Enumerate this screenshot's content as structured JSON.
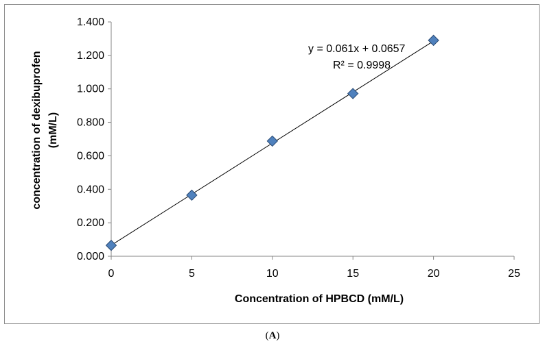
{
  "chart_data": {
    "type": "scatter",
    "x": [
      0,
      5,
      10,
      15,
      20
    ],
    "y": [
      0.065,
      0.365,
      0.688,
      0.972,
      1.29
    ],
    "xlabel": "Concentration of HPBCD (mM/L)",
    "ylabel_line1": "concentration of dexibuprofen",
    "ylabel_line2": "(mM/L)",
    "xlim": [
      0,
      25
    ],
    "ylim": [
      0,
      1.4
    ],
    "x_ticks": [
      "0",
      "5",
      "10",
      "15",
      "20",
      "25"
    ],
    "y_ticks": [
      "0.000",
      "0.200",
      "0.400",
      "0.600",
      "0.800",
      "1.000",
      "1.200",
      "1.400"
    ],
    "trendline": {
      "slope": 0.061,
      "intercept": 0.0657
    },
    "equation": "y = 0.061x + 0.0657",
    "r_squared": "R² = 0.9998",
    "marker_color": "#4f81bd",
    "marker_edge": "#2a4a73",
    "grid": false,
    "legend": "none"
  },
  "caption": {
    "open": "(",
    "letter": "A",
    "close": ")"
  }
}
